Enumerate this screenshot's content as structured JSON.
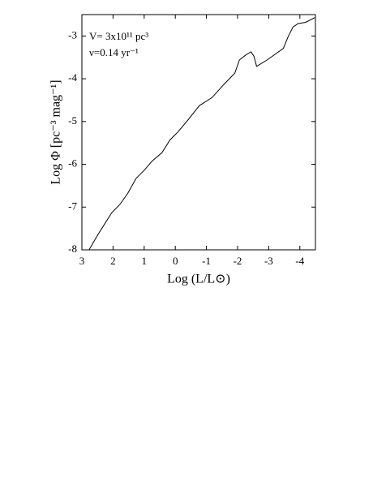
{
  "chart_data": {
    "type": "line",
    "xlabel": "Log (L/L⊙)",
    "ylabel": "Log Φ [pc⁻³ mag⁻¹]",
    "annotations": [
      "V= 3x10¹¹ pc³",
      "ν=0.14 yr⁻¹"
    ],
    "xlim": [
      3,
      -4.5
    ],
    "ylim": [
      -8,
      -2.5
    ],
    "xticks": [
      3,
      2,
      1,
      0,
      -1,
      -2,
      -3,
      -4
    ],
    "yticks": [
      -8,
      -7,
      -6,
      -5,
      -4,
      -3
    ],
    "color": "#000000",
    "x": [
      2.77,
      2.5,
      2.3,
      2.04,
      1.78,
      1.52,
      1.26,
      1.0,
      0.74,
      0.43,
      0.17,
      -0.09,
      -0.4,
      -0.77,
      -1.18,
      -1.55,
      -1.91,
      -2.06,
      -2.27,
      -2.43,
      -2.53,
      -2.61,
      -2.95,
      -3.47,
      -3.62,
      -3.78,
      -3.94,
      -4.19,
      -4.48
    ],
    "values": [
      -8,
      -7.66,
      -7.43,
      -7.13,
      -6.94,
      -6.67,
      -6.33,
      -6.14,
      -5.92,
      -5.73,
      -5.43,
      -5.24,
      -4.97,
      -4.63,
      -4.44,
      -4.14,
      -3.87,
      -3.56,
      -3.44,
      -3.37,
      -3.48,
      -3.71,
      -3.56,
      -3.29,
      -3.02,
      -2.79,
      -2.71,
      -2.68,
      -2.57
    ]
  }
}
